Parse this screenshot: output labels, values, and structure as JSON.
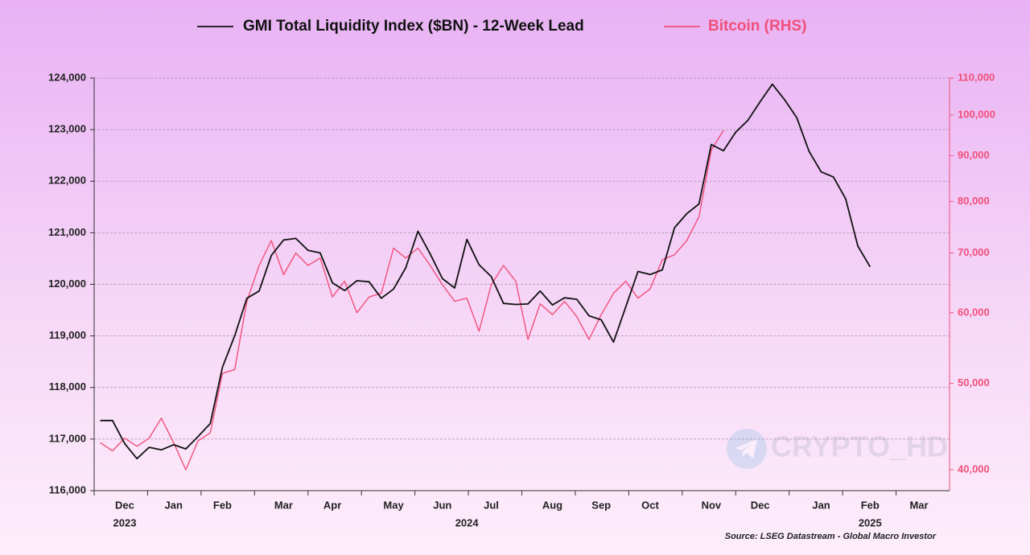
{
  "chart_data": {
    "type": "line",
    "legend": "top",
    "grid": true,
    "y2_log": true,
    "source": "Source: LSEG Datastream - Global Macro Investor",
    "watermark": "CRYPTO_HD",
    "categories": [
      null,
      null,
      "Dec",
      null,
      null,
      null,
      "Jan",
      null,
      null,
      null,
      "Feb",
      null,
      null,
      null,
      null,
      "Mar",
      null,
      null,
      null,
      "Apr",
      null,
      null,
      null,
      null,
      "May",
      null,
      null,
      null,
      "Jun",
      null,
      null,
      null,
      "Jul",
      null,
      null,
      null,
      null,
      "Aug",
      null,
      null,
      null,
      "Sep",
      null,
      null,
      null,
      "Oct",
      null,
      null,
      null,
      null,
      "Nov",
      null,
      null,
      null,
      "Dec",
      null,
      null,
      null,
      null,
      "Jan",
      null,
      null,
      null,
      "Feb",
      null,
      null,
      null,
      "Mar",
      null,
      null
    ],
    "year_labels": [
      null,
      null,
      "2023",
      null,
      null,
      null,
      null,
      null,
      null,
      null,
      null,
      null,
      null,
      null,
      null,
      null,
      null,
      null,
      null,
      null,
      null,
      null,
      null,
      null,
      null,
      null,
      null,
      null,
      null,
      null,
      "2024",
      null,
      null,
      null,
      null,
      null,
      null,
      null,
      null,
      null,
      null,
      null,
      null,
      null,
      null,
      null,
      null,
      null,
      null,
      null,
      null,
      null,
      null,
      null,
      null,
      null,
      null,
      null,
      null,
      null,
      null,
      null,
      null,
      "2025",
      null,
      null,
      null,
      null,
      null,
      null
    ],
    "ylim": [
      116000,
      124000
    ],
    "yticks": [
      {
        "value": 116000,
        "label": "116,000"
      },
      {
        "value": 117000,
        "label": "117,000"
      },
      {
        "value": 118000,
        "label": "118,000"
      },
      {
        "value": 119000,
        "label": "119,000"
      },
      {
        "value": 120000,
        "label": "120,000"
      },
      {
        "value": 121000,
        "label": "121,000"
      },
      {
        "value": 122000,
        "label": "122,000"
      },
      {
        "value": 123000,
        "label": "123,000"
      },
      {
        "value": 124000,
        "label": "124,000"
      }
    ],
    "y2lim": [
      37900,
      110000
    ],
    "y2ticks": [
      {
        "value": 40000,
        "label": "40,000"
      },
      {
        "value": 50000,
        "label": "50,000"
      },
      {
        "value": 60000,
        "label": "60,000"
      },
      {
        "value": 70000,
        "label": "70,000"
      },
      {
        "value": 80000,
        "label": "80,000"
      },
      {
        "value": 90000,
        "label": "90,000"
      },
      {
        "value": 100000,
        "label": "100,000"
      },
      {
        "value": 110000,
        "label": "110,000"
      }
    ],
    "series": [
      {
        "name": "GMI Total Liquidity Index ($BN) - 12-Week Lead",
        "color": "#111111",
        "values": [
          117360,
          117360,
          116910,
          116620,
          116840,
          116790,
          116890,
          116810,
          117050,
          117300,
          118390,
          119000,
          119730,
          119870,
          120560,
          120860,
          120890,
          120660,
          120610,
          120030,
          119880,
          120070,
          120050,
          119730,
          119910,
          120320,
          121030,
          120590,
          120110,
          119930,
          120870,
          120380,
          120150,
          119630,
          119610,
          119620,
          119870,
          119600,
          119740,
          119710,
          119390,
          119310,
          118880,
          119560,
          120250,
          120190,
          120280,
          121100,
          121370,
          121560,
          122710,
          122590,
          122950,
          123180,
          123540,
          123880,
          123580,
          123230,
          122580,
          122180,
          122080,
          121660,
          120740,
          120340,
          null,
          null,
          null,
          null,
          null,
          null
        ]
      },
      {
        "name": "Bitcoin (RHS)",
        "color": "#f0507a",
        "axis": "y2",
        "values": [
          42900,
          42000,
          43400,
          42500,
          43400,
          45700,
          42900,
          40000,
          43100,
          44000,
          51300,
          51800,
          61800,
          67800,
          72300,
          66200,
          70000,
          67800,
          69100,
          62500,
          65100,
          60000,
          62500,
          63100,
          70900,
          69100,
          70900,
          67800,
          64500,
          61800,
          62300,
          57200,
          64500,
          67800,
          65100,
          56000,
          61400,
          59700,
          61800,
          59400,
          56000,
          59700,
          63100,
          65100,
          62300,
          63800,
          68800,
          69700,
          72300,
          76900,
          91300,
          96100,
          null,
          null,
          null,
          null,
          null,
          null,
          null,
          null,
          null,
          null,
          null,
          null,
          null,
          null,
          null,
          null,
          null,
          null
        ]
      }
    ]
  }
}
